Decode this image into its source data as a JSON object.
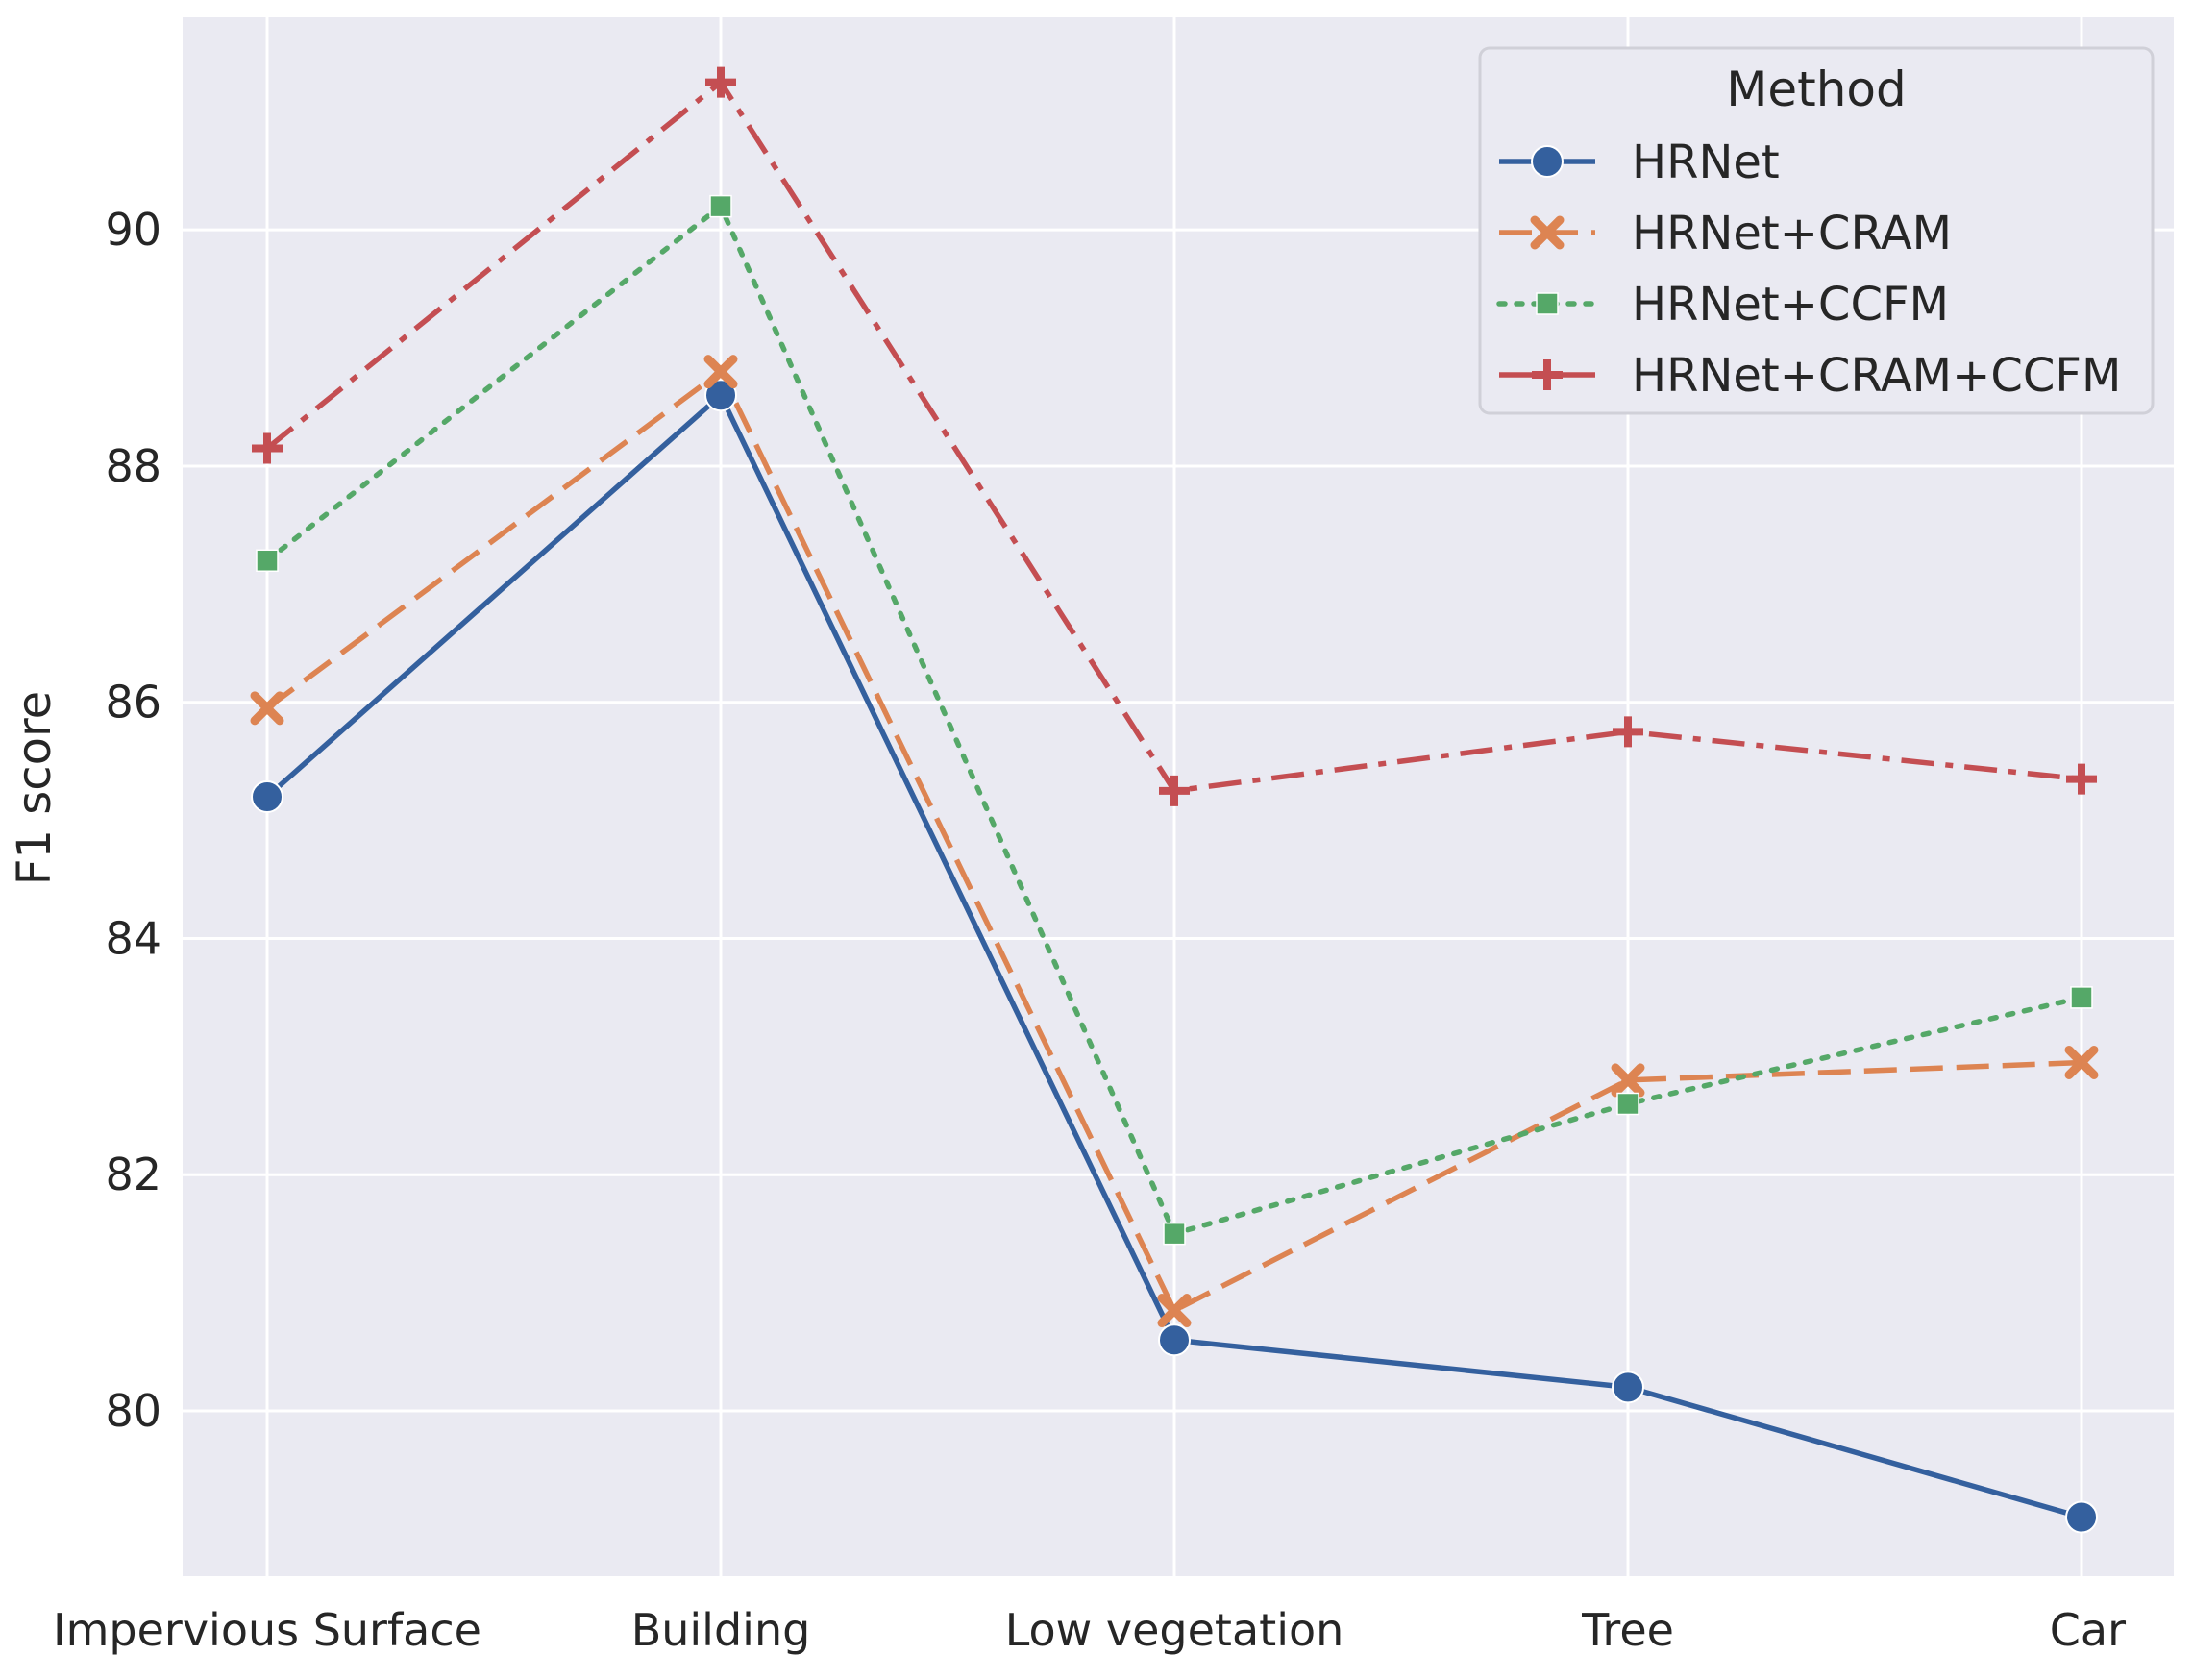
{
  "chart_data": {
    "type": "line",
    "title": "",
    "xlabel": "",
    "ylabel": "F1 score",
    "categories": [
      "Impervious Surface",
      "Building",
      "Low vegetation",
      "Tree",
      "Car"
    ],
    "ylim": [
      78.6,
      91.8
    ],
    "yticks": [
      80,
      82,
      84,
      86,
      88,
      90
    ],
    "grid": true,
    "legend_title": "Method",
    "legend_position": "top-right",
    "series": [
      {
        "name": "HRNet",
        "values": [
          85.2,
          88.6,
          80.6,
          80.2,
          79.1
        ],
        "color": "#34609e",
        "marker": "circle",
        "dash": "solid"
      },
      {
        "name": "HRNet+CRAM",
        "values": [
          85.95,
          88.8,
          80.85,
          82.8,
          82.95
        ],
        "color": "#dd8452",
        "marker": "x",
        "dash": "dashed"
      },
      {
        "name": "HRNet+CCFM",
        "values": [
          87.2,
          90.2,
          81.5,
          82.6,
          83.5
        ],
        "color": "#55a868",
        "marker": "square",
        "dash": "dotted"
      },
      {
        "name": "HRNet+CRAM+CCFM",
        "values": [
          88.15,
          91.25,
          85.25,
          85.75,
          85.35
        ],
        "color": "#c44e52",
        "marker": "plus",
        "dash": "dashdot"
      }
    ],
    "background_color": "#eaeaf2",
    "grid_color": "#ffffff"
  }
}
